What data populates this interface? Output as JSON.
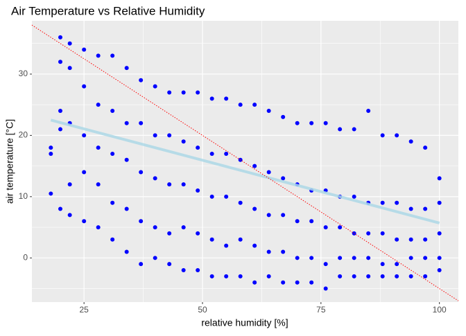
{
  "chart_data": {
    "type": "scatter",
    "title": "Air Temperature vs Relative Humidity",
    "x_label": "relative humidity [%]",
    "y_label": "air temperature [°C]",
    "xlim": [
      14,
      104
    ],
    "ylim": [
      -7.2,
      38.7
    ],
    "xticks": [
      25,
      50,
      75,
      100
    ],
    "yticks": [
      0,
      10,
      20,
      30
    ],
    "x_minor_ticks": [
      37.5,
      62.5,
      87.5
    ],
    "y_minor_ticks": [
      -5,
      5,
      15,
      25,
      35
    ],
    "grid": true,
    "points": {
      "color": "#0000ff",
      "x": [
        18,
        18,
        18,
        20,
        20,
        20,
        20,
        20,
        22,
        22,
        22,
        22,
        22,
        25,
        25,
        25,
        25,
        25,
        28,
        28,
        28,
        28,
        28,
        31,
        31,
        31,
        31,
        31,
        34,
        34,
        34,
        34,
        34,
        37,
        37,
        37,
        37,
        37,
        40,
        40,
        40,
        40,
        40,
        43,
        43,
        43,
        43,
        43,
        46,
        46,
        46,
        46,
        46,
        49,
        49,
        49,
        49,
        49,
        52,
        52,
        52,
        52,
        52,
        55,
        55,
        55,
        55,
        55,
        58,
        58,
        58,
        58,
        58,
        61,
        61,
        61,
        61,
        61,
        64,
        64,
        64,
        64,
        64,
        67,
        67,
        67,
        67,
        67,
        70,
        70,
        70,
        70,
        70,
        73,
        73,
        73,
        73,
        73,
        76,
        76,
        76,
        76,
        76,
        79,
        79,
        79,
        79,
        79,
        82,
        82,
        82,
        82,
        82,
        85,
        85,
        85,
        85,
        85,
        88,
        88,
        88,
        88,
        88,
        91,
        91,
        91,
        91,
        91,
        94,
        94,
        94,
        94,
        94,
        97,
        97,
        97,
        97,
        97,
        100,
        100,
        100,
        100,
        100
      ],
      "y": [
        10.5,
        17,
        18,
        8,
        21,
        24,
        32,
        36,
        7,
        12,
        22,
        31,
        35,
        6,
        14,
        20,
        28,
        34,
        5,
        12,
        18,
        25,
        33,
        3,
        9,
        17,
        24,
        33,
        1,
        8,
        16,
        22,
        31,
        -1,
        6,
        14,
        22,
        29,
        0,
        5,
        13,
        20,
        28,
        -1,
        4,
        12,
        20,
        27,
        -2,
        5,
        12,
        19,
        27,
        -2,
        4,
        11,
        18,
        27,
        -3,
        3,
        10,
        17,
        26,
        -3,
        2,
        10,
        17,
        26,
        -3,
        3,
        9,
        16,
        25,
        -4,
        2,
        8,
        15,
        25,
        -3,
        1,
        7,
        14,
        24,
        -4,
        1,
        7,
        13,
        23,
        -4,
        0,
        6,
        12,
        22,
        -4,
        0,
        6,
        11,
        22,
        -5,
        -1,
        5,
        11,
        22,
        -3,
        0,
        5,
        10,
        21,
        -3,
        0,
        4,
        10,
        21,
        -3,
        0,
        4,
        9,
        24,
        -3,
        -1,
        4,
        9,
        20,
        -3,
        -1,
        3,
        9,
        20,
        -3,
        0,
        3,
        8,
        19,
        -3,
        0,
        3,
        8,
        18,
        -2,
        0,
        4,
        9,
        13
      ]
    },
    "fit_line": {
      "color": "#add8e6",
      "x": [
        18,
        100
      ],
      "y": [
        22.5,
        5.7
      ]
    },
    "reference_line": {
      "color": "#ff0000",
      "x": [
        14,
        104
      ],
      "y": [
        38,
        -7
      ]
    }
  }
}
